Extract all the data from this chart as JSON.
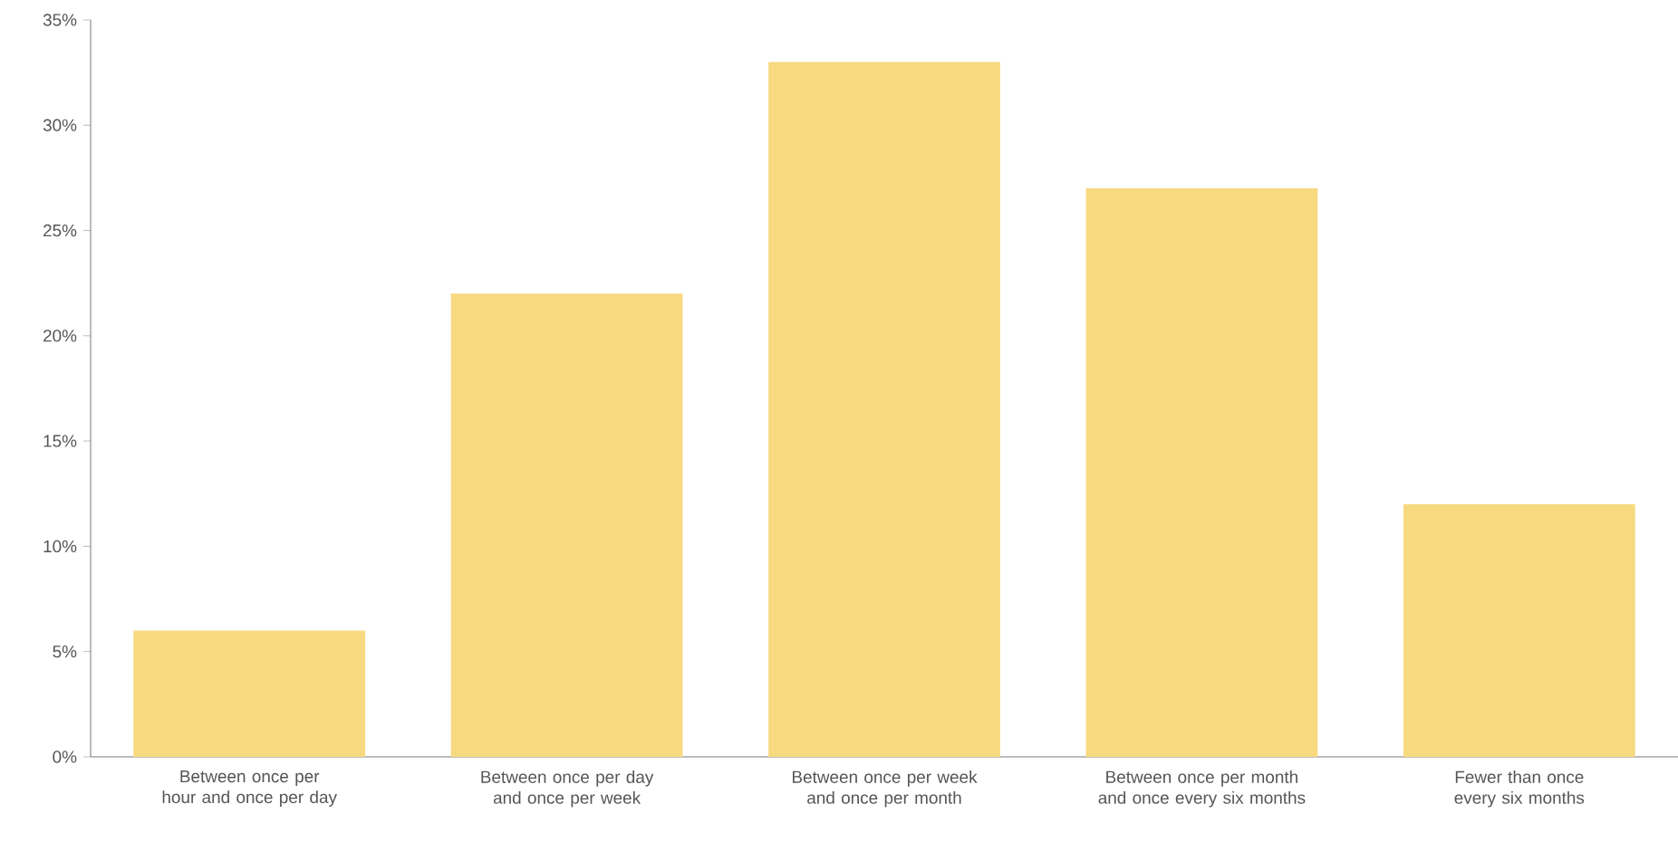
{
  "chart_data": {
    "type": "bar",
    "categories": [
      "Between once per hour and once per day",
      "Between once per day and once per week",
      "Between once per week and once per month",
      "Between once per month and once every six months",
      "Fewer than once every six months"
    ],
    "values": [
      6,
      22,
      33,
      27,
      12
    ],
    "color": "#f7d980",
    "ylim": [
      0,
      35
    ],
    "yticks": [
      {
        "value": 0,
        "label": "0%"
      },
      {
        "value": 5,
        "label": "5%"
      },
      {
        "value": 10,
        "label": "10%"
      },
      {
        "value": 15,
        "label": "15%"
      },
      {
        "value": 20,
        "label": "20%"
      },
      {
        "value": 25,
        "label": "25%"
      },
      {
        "value": 30,
        "label": "30%"
      },
      {
        "value": 35,
        "label": "35%"
      }
    ],
    "grid": false
  }
}
